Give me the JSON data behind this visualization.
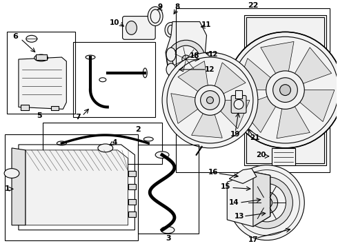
{
  "bg_color": "#ffffff",
  "lc": "#000000",
  "gray_fill": "#f2f2f2",
  "mid_gray": "#e0e0e0",
  "dark_gray": "#c8c8c8",
  "figsize": [
    4.9,
    3.6
  ],
  "dpi": 100
}
